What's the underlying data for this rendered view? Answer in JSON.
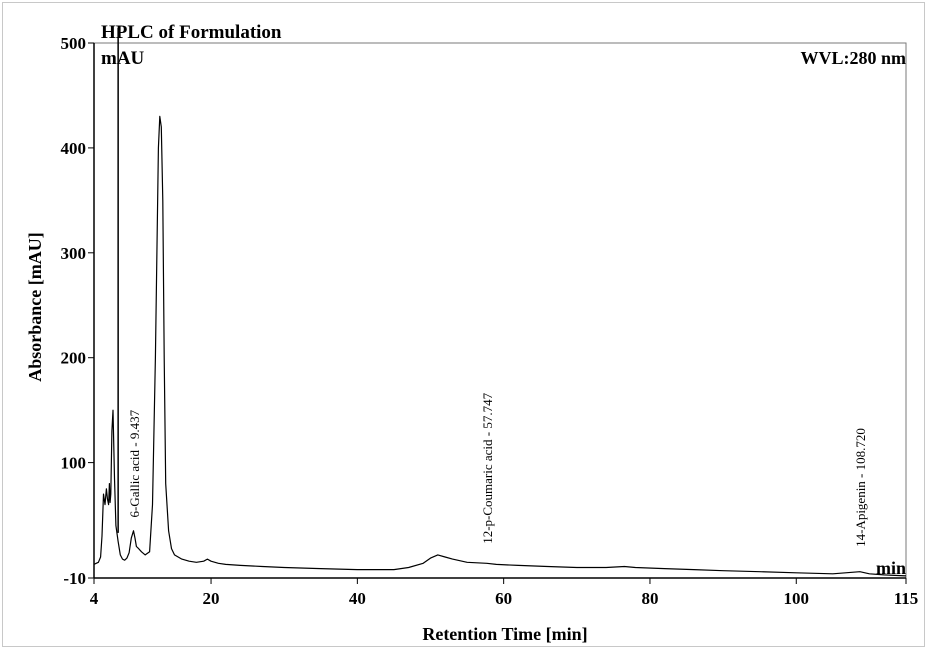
{
  "chart_data": {
    "type": "line",
    "title": "HPLC of Formulation",
    "wavelength_label": "WVL:280 nm",
    "ylabel": "Absorbance [mAU]",
    "xlabel": "Retention Time [min]",
    "y_unit_label": "mAU",
    "x_unit_label": "min",
    "xlim": [
      4,
      115
    ],
    "ylim": [
      -10,
      500
    ],
    "x_ticks": [
      4,
      20,
      40,
      60,
      80,
      100,
      115
    ],
    "y_ticks": [
      -10,
      100,
      200,
      300,
      400,
      500
    ],
    "grid": false,
    "legend": "none",
    "line_color": "#000000",
    "series": [
      {
        "x": [
          4.0,
          4.3,
          4.6,
          4.9,
          5.1,
          5.3,
          5.5,
          5.7,
          5.85,
          6.0,
          6.1,
          6.2,
          6.3,
          6.45,
          6.6,
          6.8,
          7.0,
          7.3,
          7.6,
          7.9,
          8.2,
          8.5,
          8.8,
          9.1,
          9.4,
          9.6,
          9.8,
          10.1,
          10.5,
          11.0,
          11.6,
          12.0,
          12.4,
          12.8,
          13.0,
          13.2,
          13.4,
          13.6,
          13.8,
          14.2,
          14.6,
          15.0,
          16.0,
          17.0,
          18.0,
          19.0,
          19.5,
          20.0,
          21.0,
          22.0,
          24.0,
          27.0,
          30.0,
          35.0,
          40.0,
          45.0,
          47.0,
          49.0,
          50.0,
          51.0,
          52.0,
          53.0,
          55.0,
          57.7,
          59.0,
          62.0,
          66.0,
          70.0,
          74.0,
          76.5,
          78.0,
          82.0,
          86.0,
          90.0,
          95.0,
          100.0,
          105.0,
          108.7,
          110.0,
          112.0,
          115.0
        ],
        "values": [
          3,
          4,
          5,
          10,
          30,
          70,
          60,
          75,
          65,
          60,
          80,
          62,
          70,
          130,
          150,
          85,
          40,
          25,
          12,
          8,
          7,
          9,
          14,
          28,
          35,
          28,
          20,
          18,
          15,
          12,
          15,
          60,
          200,
          400,
          430,
          420,
          350,
          200,
          80,
          35,
          18,
          12,
          8,
          6,
          5,
          6,
          8,
          6,
          4,
          3,
          2,
          1,
          0,
          -1,
          -2,
          -2,
          0,
          4,
          9,
          12,
          10,
          8,
          5,
          4,
          3,
          2,
          1,
          0,
          0,
          1,
          0,
          -1,
          -2,
          -3,
          -4,
          -5,
          -6,
          -4,
          -6,
          -7,
          -8
        ]
      }
    ],
    "annotations": [
      {
        "x": 9.437,
        "y": 40,
        "text": "6-Gallic acid - 9.437"
      },
      {
        "x": 57.747,
        "y": 15,
        "text": "12-p-Coumaric acid - 57.747"
      },
      {
        "x": 108.72,
        "y": 12,
        "text": "14-Apigenin - 108.720"
      }
    ]
  }
}
